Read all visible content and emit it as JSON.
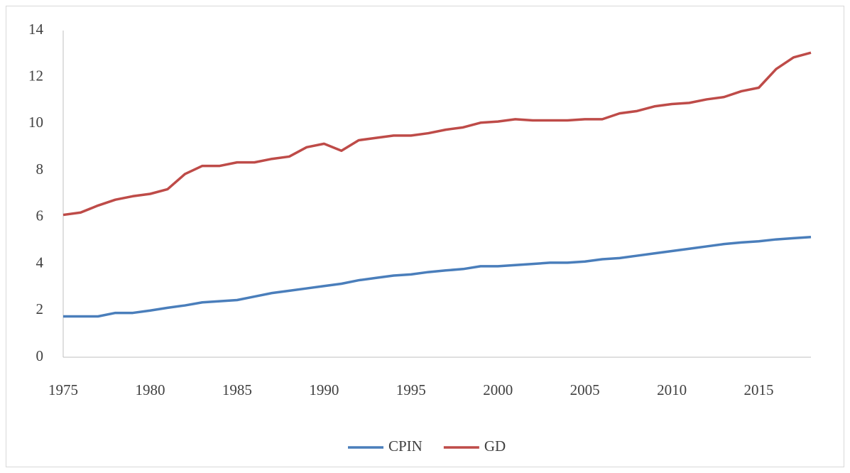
{
  "chart_data": {
    "type": "line",
    "x": [
      1975,
      1976,
      1977,
      1978,
      1979,
      1980,
      1981,
      1982,
      1983,
      1984,
      1985,
      1986,
      1987,
      1988,
      1989,
      1990,
      1991,
      1992,
      1993,
      1994,
      1995,
      1996,
      1997,
      1998,
      1999,
      2000,
      2001,
      2002,
      2003,
      2004,
      2005,
      2006,
      2007,
      2008,
      2009,
      2010,
      2011,
      2012,
      2013,
      2014,
      2015,
      2016,
      2017,
      2018
    ],
    "series": [
      {
        "name": "CPIN",
        "color": "#4a7ebb",
        "values": [
          1.75,
          1.75,
          1.75,
          1.9,
          1.9,
          2.0,
          2.12,
          2.22,
          2.35,
          2.4,
          2.45,
          2.6,
          2.75,
          2.85,
          2.95,
          3.05,
          3.15,
          3.3,
          3.4,
          3.5,
          3.55,
          3.65,
          3.72,
          3.78,
          3.9,
          3.9,
          3.95,
          4.0,
          4.05,
          4.05,
          4.1,
          4.2,
          4.25,
          4.35,
          4.45,
          4.55,
          4.65,
          4.75,
          4.85,
          4.92,
          4.97,
          5.05,
          5.1,
          5.15
        ]
      },
      {
        "name": "GD",
        "color": "#be4b48",
        "values": [
          6.1,
          6.2,
          6.5,
          6.75,
          6.9,
          7.0,
          7.2,
          7.85,
          8.2,
          8.2,
          8.35,
          8.35,
          8.5,
          8.6,
          9.0,
          9.15,
          8.85,
          9.3,
          9.4,
          9.5,
          9.5,
          9.6,
          9.75,
          9.85,
          10.05,
          10.1,
          10.2,
          10.15,
          10.15,
          10.15,
          10.2,
          10.2,
          10.45,
          10.55,
          10.75,
          10.85,
          10.9,
          11.05,
          11.15,
          11.4,
          11.55,
          12.35,
          12.85,
          13.05
        ]
      }
    ],
    "xlim": [
      1975,
      2018
    ],
    "xticks": [
      1975,
      1980,
      1985,
      1990,
      1995,
      2000,
      2005,
      2010,
      2015
    ],
    "ylim": [
      0,
      14
    ],
    "yticks": [
      0,
      2,
      4,
      6,
      8,
      10,
      12,
      14
    ],
    "grid": false,
    "legend": "bottom"
  }
}
